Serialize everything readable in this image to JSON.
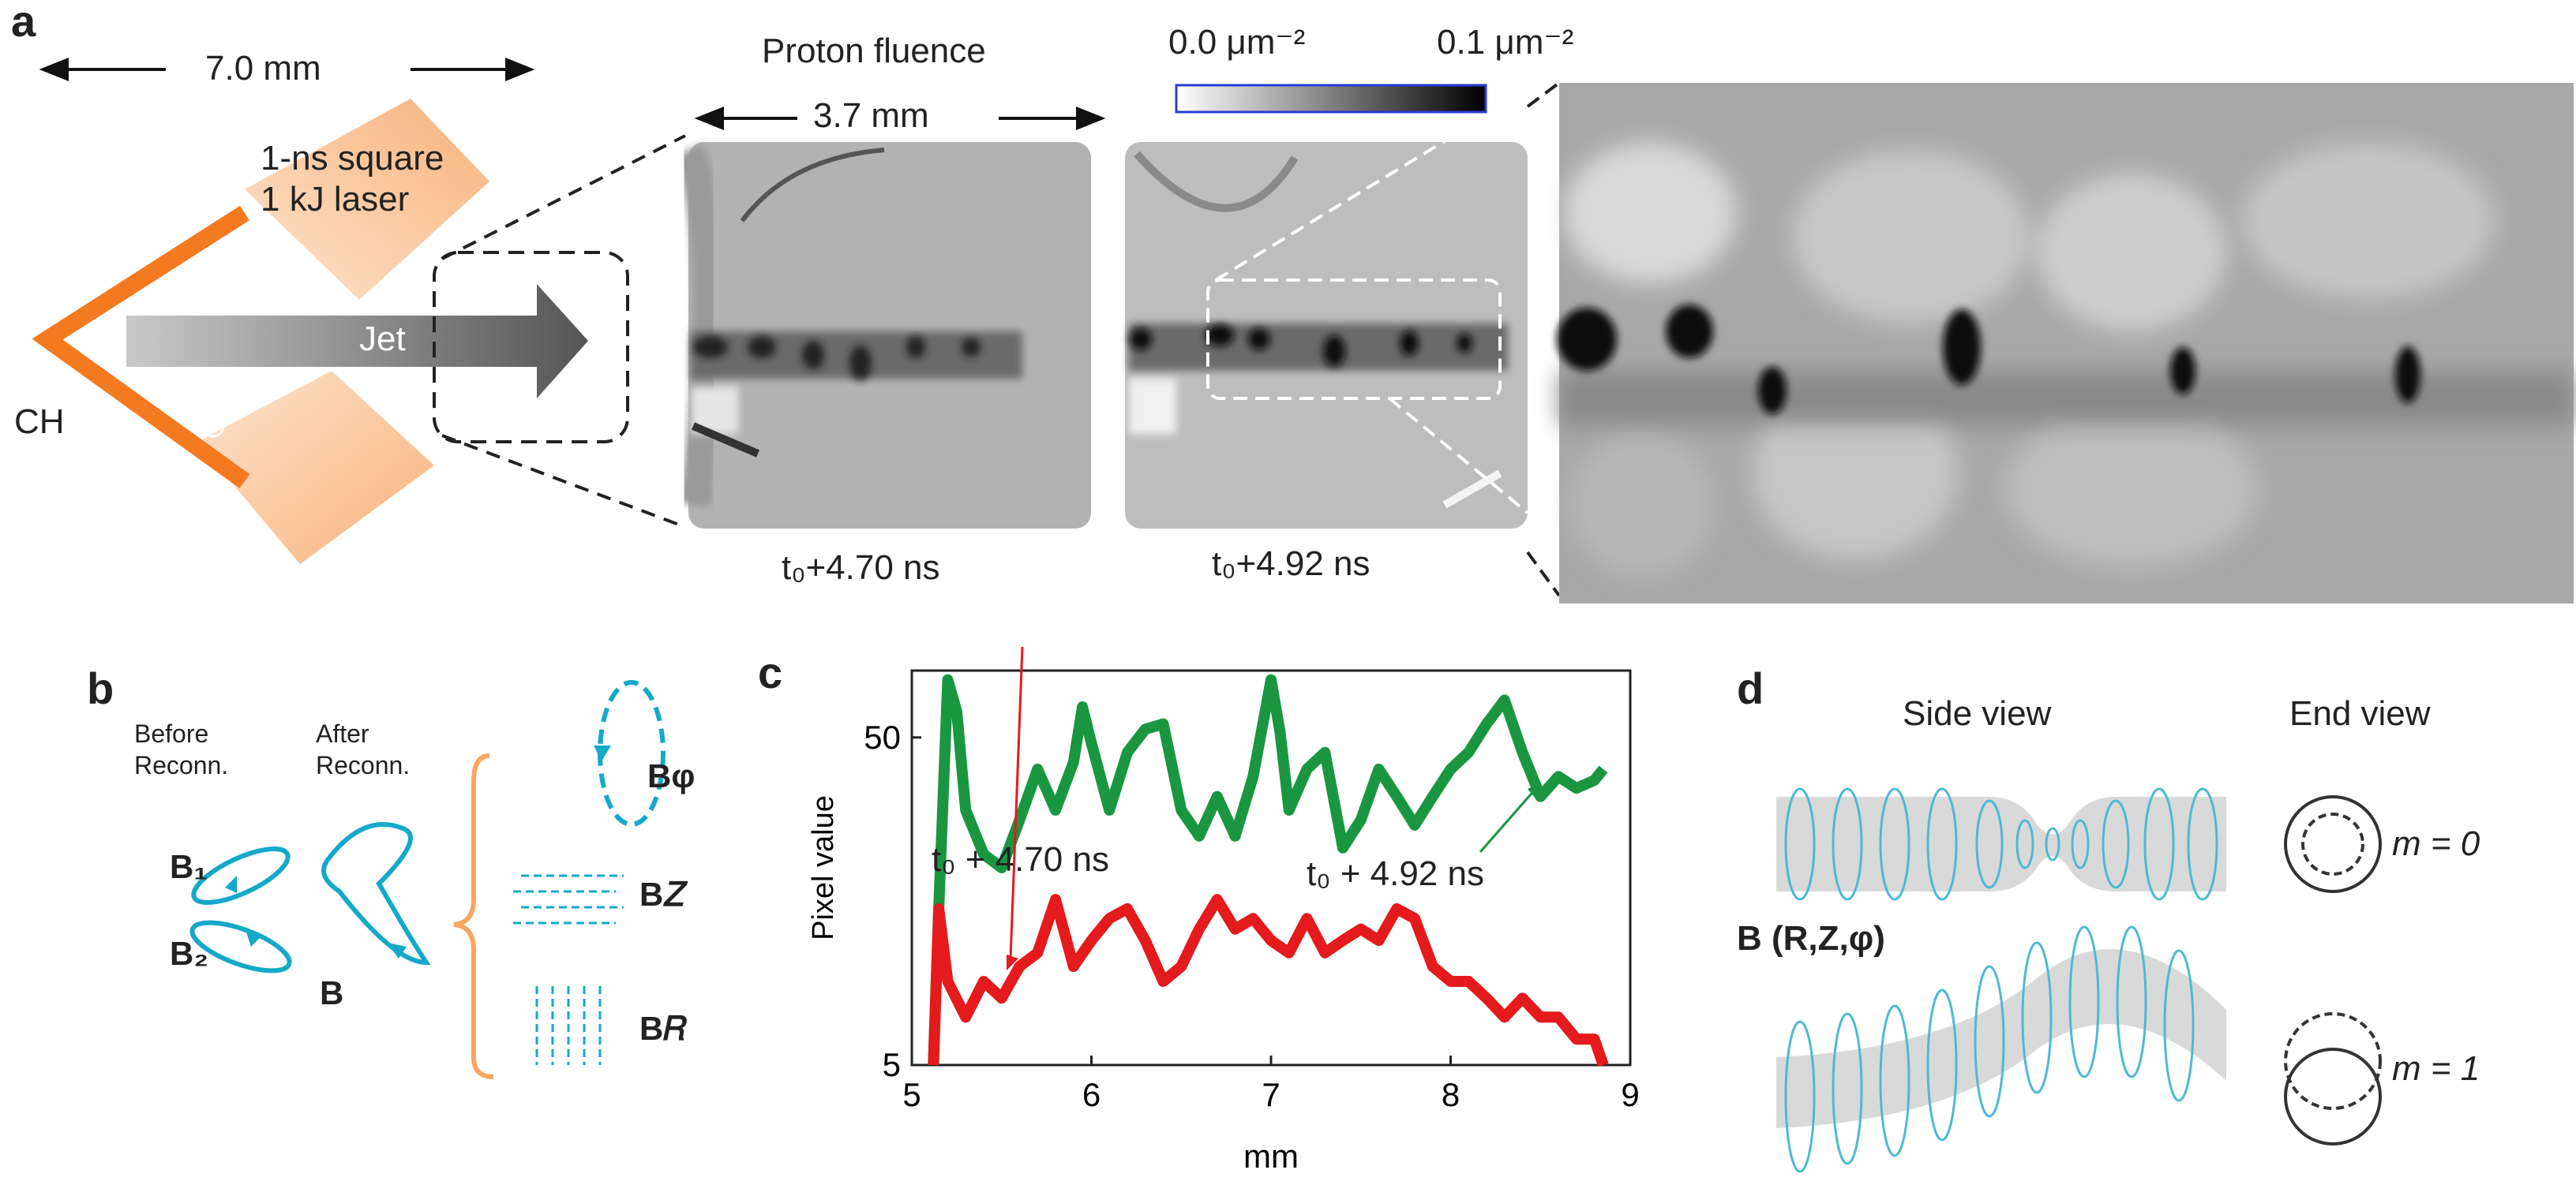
{
  "panel_a": {
    "label": "a",
    "width_label": "7.0 mm",
    "laser_label_1": "1-ns square",
    "laser_label_2": "1 kJ laser",
    "target_label": "CH",
    "jet_label": "Jet",
    "proton_title": "Proton fluence",
    "proton_width": "3.7 mm",
    "colorbar_min": "0.0 μm⁻²",
    "colorbar_max": "0.1 μm⁻²",
    "time1": "t₀+4.70 ns",
    "time2": "t₀+4.92 ns"
  },
  "panel_b": {
    "label": "b",
    "before_1": "Before",
    "before_2": "Reconn.",
    "after_1": "After",
    "after_2": "Reconn.",
    "b1": "B₁",
    "b2": "B₂",
    "b": "B",
    "bphi": "Bφ",
    "bz": "B𝑍",
    "br": "B𝑅"
  },
  "panel_c": {
    "label": "c",
    "annot_red": "t₀ + 4.70 ns",
    "annot_green": "t₀ + 4.92 ns"
  },
  "panel_d": {
    "label": "d",
    "side_view": "Side view",
    "end_view": "End view",
    "m0": "m = 0",
    "m1": "m = 1",
    "bvec": "B (R,Z,φ)"
  },
  "chart_data": {
    "type": "line",
    "xlabel": "mm",
    "ylabel": "Pixel value",
    "xlim": [
      5,
      9
    ],
    "ylim": [
      5,
      80
    ],
    "yscale": "log",
    "xticks": [
      5,
      6,
      7,
      8,
      9
    ],
    "yticks": [
      5,
      50
    ],
    "series": [
      {
        "name": "t₀ + 4.92 ns",
        "color": "#1a9641",
        "x": [
          5.12,
          5.15,
          5.2,
          5.25,
          5.3,
          5.4,
          5.5,
          5.6,
          5.7,
          5.8,
          5.9,
          5.95,
          6.0,
          6.1,
          6.2,
          6.3,
          6.4,
          6.5,
          6.6,
          6.7,
          6.8,
          6.9,
          7.0,
          7.05,
          7.1,
          7.2,
          7.3,
          7.4,
          7.5,
          7.6,
          7.7,
          7.8,
          7.9,
          8.0,
          8.1,
          8.2,
          8.3,
          8.4,
          8.5,
          8.6,
          8.7,
          8.8,
          8.85
        ],
        "y": [
          5,
          15,
          75,
          60,
          30,
          22,
          20,
          28,
          40,
          30,
          42,
          62,
          48,
          30,
          45,
          53,
          55,
          30,
          25,
          33,
          25,
          38,
          75,
          52,
          30,
          40,
          45,
          23,
          28,
          40,
          33,
          27,
          33,
          40,
          45,
          55,
          65,
          45,
          33,
          38,
          35,
          37,
          40
        ]
      },
      {
        "name": "t₀ + 4.70 ns",
        "color": "#e41a1c",
        "x": [
          5.12,
          5.15,
          5.2,
          5.3,
          5.4,
          5.5,
          5.6,
          5.7,
          5.8,
          5.9,
          6.0,
          6.1,
          6.2,
          6.3,
          6.4,
          6.5,
          6.6,
          6.7,
          6.8,
          6.9,
          7.0,
          7.1,
          7.2,
          7.3,
          7.4,
          7.5,
          7.6,
          7.7,
          7.8,
          7.9,
          8.0,
          8.1,
          8.2,
          8.3,
          8.4,
          8.5,
          8.6,
          8.7,
          8.8,
          8.85
        ],
        "y": [
          5,
          15,
          9,
          7,
          9,
          8,
          10,
          11,
          16,
          10,
          12,
          14,
          15,
          12,
          9,
          10,
          13,
          16,
          13,
          14,
          12,
          11,
          14,
          11,
          12,
          13,
          12,
          15,
          14,
          10,
          9,
          9,
          8,
          7,
          8,
          7,
          7,
          6,
          6,
          5
        ]
      }
    ]
  }
}
